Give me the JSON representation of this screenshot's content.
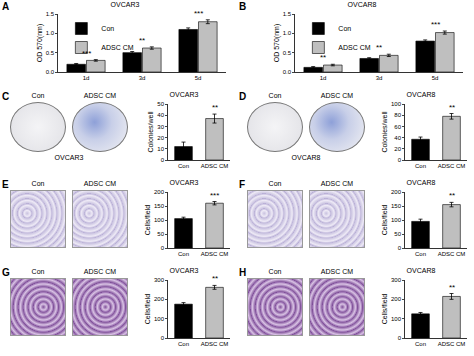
{
  "chart_data": [
    {
      "panel": "A",
      "type": "bar",
      "title": "OVCAR3",
      "y_label": "OD 570(nm)",
      "categories": [
        "1d",
        "3d",
        "5d"
      ],
      "series": [
        {
          "name": "Con",
          "color": "#000000",
          "values": [
            0.2,
            0.5,
            1.1
          ],
          "errors": [
            0.02,
            0.03,
            0.04
          ]
        },
        {
          "name": "ADSC CM",
          "color": "#bfbfbf",
          "values": [
            0.3,
            0.62,
            1.3
          ],
          "errors": [
            0.02,
            0.03,
            0.05
          ]
        }
      ],
      "ylim": [
        0,
        1.5
      ],
      "yticks": [
        {
          "value": 0,
          "label": "0.0"
        },
        0.5,
        {
          "value": 1,
          "label": "1.0"
        },
        1.5
      ],
      "legend": "top left",
      "annotations": [
        {
          "category": "1d",
          "text": "***"
        },
        {
          "category": "3d",
          "text": "**"
        },
        {
          "category": "5d",
          "text": "***"
        }
      ]
    },
    {
      "panel": "B",
      "type": "bar",
      "title": "OVCAR8",
      "y_label": "OD 570(nm)",
      "categories": [
        "1d",
        "3d",
        "5d"
      ],
      "series": [
        {
          "name": "Con",
          "color": "#000000",
          "values": [
            0.12,
            0.35,
            0.8
          ],
          "errors": [
            0.02,
            0.02,
            0.03
          ]
        },
        {
          "name": "ADSC CM",
          "color": "#bfbfbf",
          "values": [
            0.18,
            0.43,
            1.02
          ],
          "errors": [
            0.02,
            0.03,
            0.04
          ]
        }
      ],
      "ylim": [
        0,
        1.5
      ],
      "yticks": [
        {
          "value": 0,
          "label": "0.0"
        },
        0.5,
        {
          "value": 1,
          "label": "1.0"
        },
        1.5
      ],
      "legend": "top left",
      "annotations": [
        {
          "category": "1d",
          "text": "**"
        },
        {
          "category": "3d",
          "text": "**"
        },
        {
          "category": "5d",
          "text": "***"
        }
      ]
    },
    {
      "panel": "C",
      "type": "bar",
      "title": "OVCAR3",
      "y_label": "Colonies/well",
      "categories": [
        "Con",
        "ADSC CM"
      ],
      "values": [
        12,
        37
      ],
      "errors": [
        4,
        4
      ],
      "colors": [
        "#000000",
        "#bfbfbf"
      ],
      "ylim": [
        0,
        50
      ],
      "yticks": [
        0,
        10,
        20,
        30,
        40,
        50
      ],
      "annotations": [
        {
          "category": "ADSC CM",
          "text": "**"
        }
      ],
      "image_labels": [
        "Con",
        "ADSC CM"
      ],
      "image_caption": "OVCAR3"
    },
    {
      "panel": "D",
      "type": "bar",
      "title": "OVCAR8",
      "y_label": "Colonies/well",
      "categories": [
        "Con",
        "ADSC CM"
      ],
      "values": [
        37,
        78
      ],
      "errors": [
        4,
        5
      ],
      "colors": [
        "#000000",
        "#bfbfbf"
      ],
      "ylim": [
        0,
        100
      ],
      "yticks": [
        0,
        20,
        40,
        60,
        80,
        100
      ],
      "annotations": [
        {
          "category": "ADSC CM",
          "text": "**"
        }
      ],
      "image_labels": [
        "Con",
        "ADSC CM"
      ],
      "image_caption": "OVCAR8"
    },
    {
      "panel": "E",
      "type": "bar",
      "title": "OVCAR3",
      "y_label": "Cells/field",
      "categories": [
        "Con",
        "ADSC CM"
      ],
      "values": [
        105,
        160
      ],
      "errors": [
        5,
        6
      ],
      "colors": [
        "#000000",
        "#bfbfbf"
      ],
      "ylim": [
        0,
        200
      ],
      "yticks": [
        0,
        50,
        100,
        150,
        200
      ],
      "annotations": [
        {
          "category": "ADSC CM",
          "text": "***"
        }
      ],
      "image_labels": [
        "Con",
        "ADSC CM"
      ]
    },
    {
      "panel": "F",
      "type": "bar",
      "title": "OVCAR8",
      "y_label": "Cells/field",
      "categories": [
        "Con",
        "ADSC CM"
      ],
      "values": [
        95,
        155
      ],
      "errors": [
        8,
        8
      ],
      "colors": [
        "#000000",
        "#bfbfbf"
      ],
      "ylim": [
        0,
        200
      ],
      "yticks": [
        0,
        50,
        100,
        150,
        200
      ],
      "annotations": [
        {
          "category": "ADSC CM",
          "text": "**"
        }
      ],
      "image_labels": [
        "Con",
        "ADSC CM"
      ]
    },
    {
      "panel": "G",
      "type": "bar",
      "title": "OVCAR3",
      "y_label": "Cells/field",
      "categories": [
        "Con",
        "ADSC CM"
      ],
      "values": [
        175,
        262
      ],
      "errors": [
        8,
        10
      ],
      "colors": [
        "#000000",
        "#bfbfbf"
      ],
      "ylim": [
        0,
        300
      ],
      "yticks": [
        0,
        100,
        200,
        300
      ],
      "annotations": [
        {
          "category": "ADSC CM",
          "text": "**"
        }
      ],
      "image_labels": [
        "Con",
        "ADSC CM"
      ]
    },
    {
      "panel": "H",
      "type": "bar",
      "title": "OVCAR8",
      "y_label": "Cells/field",
      "categories": [
        "Con",
        "ADSC CM"
      ],
      "values": [
        125,
        215
      ],
      "errors": [
        7,
        15
      ],
      "colors": [
        "#000000",
        "#bfbfbf"
      ],
      "ylim": [
        0,
        300
      ],
      "yticks": [
        0,
        100,
        200,
        300
      ],
      "annotations": [
        {
          "category": "ADSC CM",
          "text": "**"
        }
      ],
      "image_labels": [
        "Con",
        "ADSC CM"
      ]
    }
  ]
}
